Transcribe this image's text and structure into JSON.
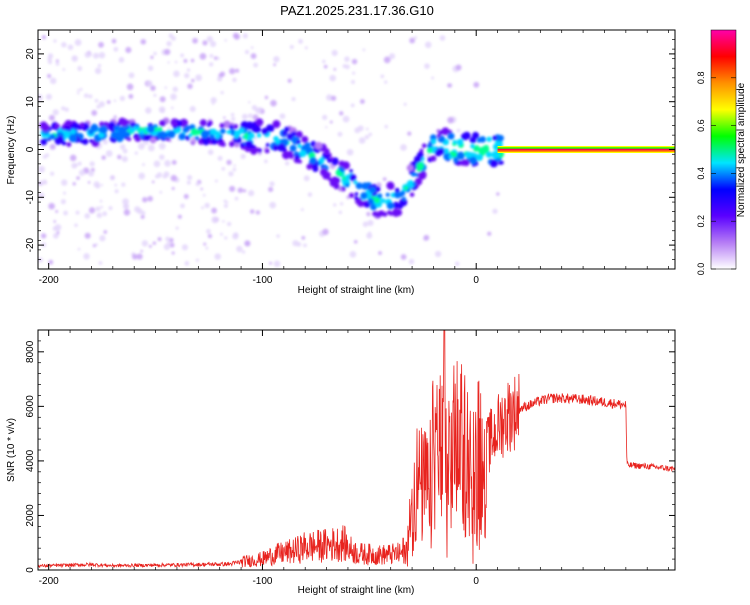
{
  "title": "PAZ1.2025.231.17.36.G10",
  "chart_data": [
    {
      "type": "heatmap",
      "xlabel": "Height of straight line (km)",
      "ylabel": "Frequency (Hz)",
      "xlim": [
        -205,
        93
      ],
      "ylim": [
        -25,
        25
      ],
      "xticks": [
        -200,
        -100,
        0
      ],
      "xtick_labels": [
        "-200",
        "-100",
        "0"
      ],
      "yticks": [
        -20,
        -10,
        0,
        10,
        20
      ],
      "ytick_labels": [
        "-20",
        "-10",
        "0",
        "10",
        "20"
      ],
      "grid": false,
      "colorbar": {
        "label": "Normalized spectral amplitude",
        "range": [
          0,
          1
        ],
        "ticks": [
          0.0,
          0.2,
          0.4,
          0.6,
          0.8
        ],
        "tick_labels": [
          "0.0",
          "0.2",
          "0.4",
          "0.6",
          "0.8"
        ],
        "colors": [
          "#ffffff",
          "#b57cf5",
          "#5a00ff",
          "#0000ff",
          "#00e5ff",
          "#00ff00",
          "#ffff00",
          "#ff9000",
          "#ff0000",
          "#ff00aa"
        ]
      },
      "features": [
        {
          "name": "band",
          "x": [
            -203,
            -150,
            -110,
            -90,
            -70,
            -55,
            -45,
            -35,
            -20,
            -5,
            10,
            30,
            60,
            93
          ],
          "f": [
            3,
            4,
            3,
            2,
            -3,
            -8,
            -11,
            -10,
            1,
            0,
            0,
            0,
            0,
            0
          ]
        },
        {
          "name": "steady-line",
          "x_from": 10,
          "x_to": 93,
          "f": 0
        }
      ]
    },
    {
      "type": "line",
      "xlabel": "Height of straight line (km)",
      "ylabel": "SNR (10 * v/v)",
      "xlim": [
        -205,
        93
      ],
      "ylim": [
        0,
        8800
      ],
      "xticks": [
        -200,
        -100,
        0
      ],
      "xtick_labels": [
        "-200",
        "-100",
        "0"
      ],
      "yticks": [
        0,
        2000,
        4000,
        6000,
        8000
      ],
      "ytick_labels": [
        "0",
        "2000",
        "4000",
        "6000",
        "8000"
      ],
      "grid": false,
      "color": "#e8231e",
      "series": [
        {
          "x": [
            -205,
            -190,
            -180,
            -170,
            -150,
            -130,
            -115,
            -110,
            -100,
            -95,
            -85,
            -80,
            -70,
            -62,
            -60,
            -55,
            -45,
            -35,
            -32,
            -30,
            -28,
            -25,
            -22,
            -20,
            -18,
            -15,
            -13,
            -10,
            -5,
            0,
            5,
            10,
            15,
            20,
            25,
            30,
            35,
            40,
            50,
            60,
            65,
            70,
            70.5,
            80,
            93
          ],
          "y": [
            150,
            180,
            200,
            160,
            180,
            200,
            220,
            300,
            400,
            550,
            700,
            850,
            900,
            1000,
            800,
            600,
            550,
            600,
            1000,
            2500,
            3200,
            3000,
            3100,
            4200,
            5000,
            3600,
            3500,
            4800,
            4300,
            4100,
            4500,
            5200,
            5700,
            5900,
            6050,
            6200,
            6300,
            6300,
            6250,
            6150,
            6100,
            6050,
            3850,
            3800,
            3700
          ]
        }
      ],
      "annotations": []
    }
  ]
}
